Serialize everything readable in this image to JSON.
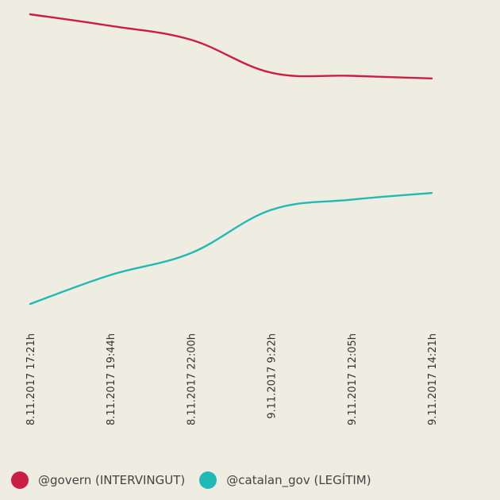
{
  "chart_data": {
    "type": "line",
    "x": [
      "8.11.2017 17:21h",
      "8.11.2017 19:44h",
      "8.11.2017 22:00h",
      "9.11.2017 9:22h",
      "9.11.2017 12:05h",
      "9.11.2017 14:21h"
    ],
    "series": [
      {
        "name": "@govern (INTERVINGUT)",
        "color": "#cc1e44",
        "values": [
          100,
          97.4,
          94.3,
          86.9,
          86.2,
          85.6
        ]
      },
      {
        "name": "@catalan_gov (LEGÍTIM)",
        "color": "#1fbab6",
        "values": [
          35,
          41.5,
          46.4,
          56.1,
          58.4,
          59.9
        ]
      }
    ],
    "legend_position": "bottom-left",
    "grid": false,
    "axes_visible": false
  }
}
